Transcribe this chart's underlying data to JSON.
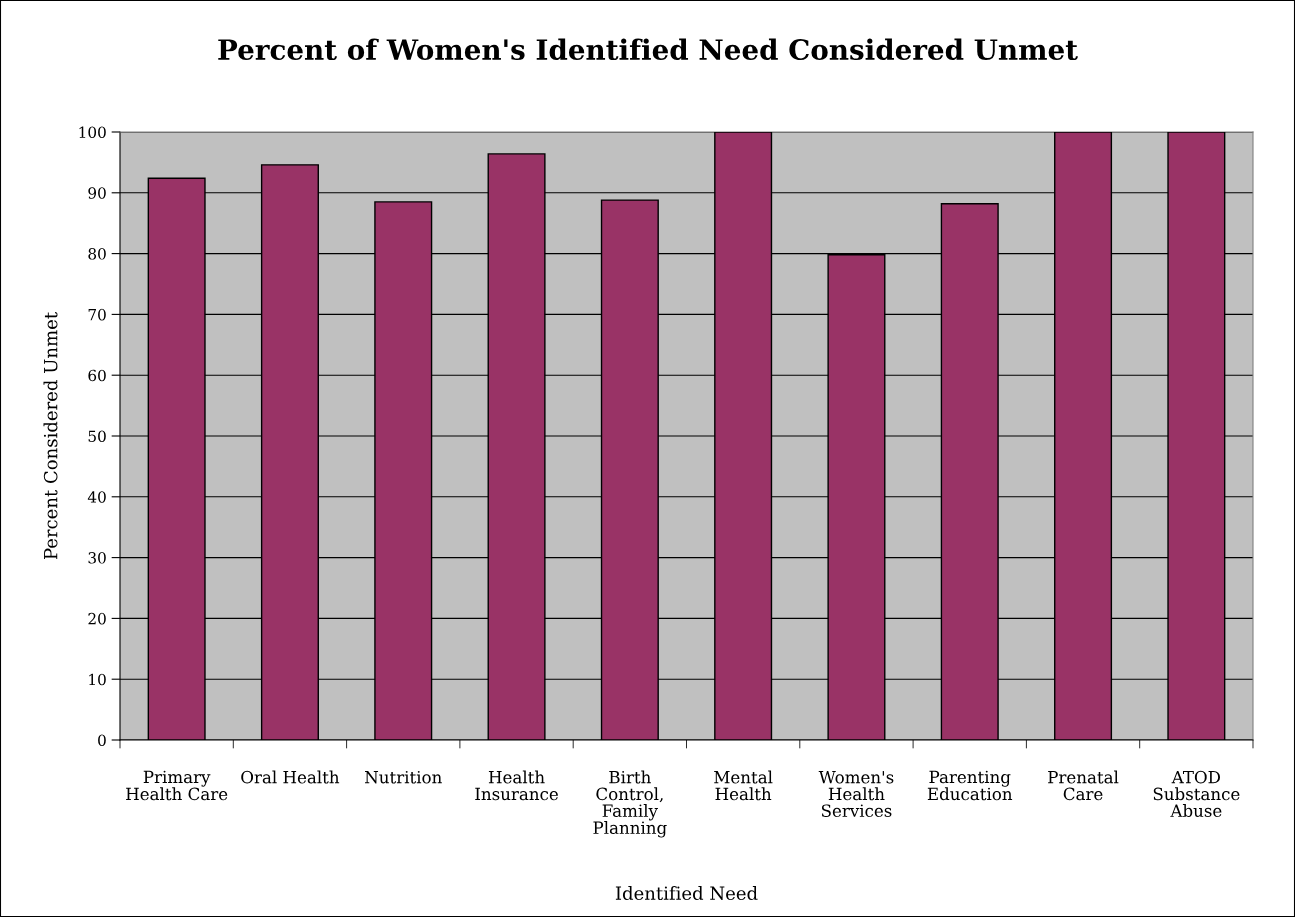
{
  "chart_data": {
    "type": "bar",
    "title": "Percent of Women's Identified Need Considered Unmet",
    "xlabel": "Identified Need",
    "ylabel": "Percent Considered Unmet",
    "categories": [
      "Primary\nHealth Care",
      "Oral Health",
      "Nutrition",
      "Health\nInsurance",
      "Birth\nControl,\nFamily\nPlanning",
      "Mental\nHealth",
      "Women's\nHealth\nServices",
      "Parenting\nEducation",
      "Prenatal\nCare",
      "ATOD\nSubstance\nAbuse"
    ],
    "values": [
      92.4,
      94.6,
      88.5,
      96.4,
      88.8,
      100,
      79.8,
      88.2,
      100,
      100
    ],
    "color": "#993366",
    "ylim": [
      0,
      100
    ],
    "yticks": [
      0,
      10,
      20,
      30,
      40,
      50,
      60,
      70,
      80,
      90,
      100
    ],
    "grid": "y",
    "legend": false
  }
}
